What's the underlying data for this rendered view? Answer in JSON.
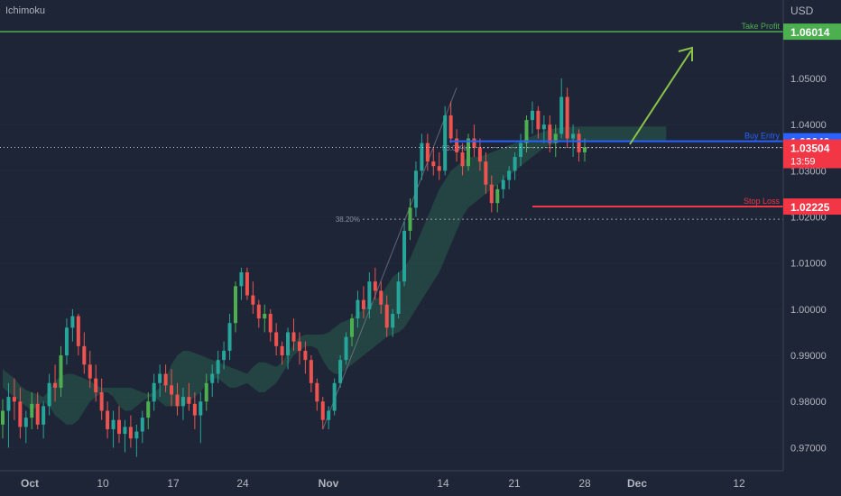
{
  "indicator": "Ichimoku",
  "currency": "USD",
  "chart_data": {
    "type": "candlestick",
    "ylim": [
      0.965,
      1.067
    ],
    "y_ticks": [
      "0.97000",
      "0.98000",
      "0.99000",
      "1.00000",
      "1.01000",
      "1.02000",
      "1.03000",
      "1.04000",
      "1.05000"
    ],
    "x_ticks": [
      "Oct",
      "10",
      "17",
      "24",
      "Nov",
      "14",
      "21",
      "28",
      "Dec",
      "12"
    ],
    "candles": [
      [
        0.975,
        0.9805,
        0.972,
        0.978
      ],
      [
        0.978,
        0.984,
        0.97,
        0.981
      ],
      [
        0.981,
        0.985,
        0.976,
        0.98
      ],
      [
        0.98,
        0.983,
        0.972,
        0.9745
      ],
      [
        0.9745,
        0.978,
        0.971,
        0.9765
      ],
      [
        0.9765,
        0.982,
        0.974,
        0.9795
      ],
      [
        0.9795,
        0.982,
        0.974,
        0.975
      ],
      [
        0.975,
        0.98,
        0.972,
        0.979
      ],
      [
        0.979,
        0.986,
        0.977,
        0.984
      ],
      [
        0.984,
        0.988,
        0.98,
        0.983
      ],
      [
        0.983,
        0.992,
        0.981,
        0.99
      ],
      [
        0.99,
        0.998,
        0.988,
        0.996
      ],
      [
        0.996,
        1.0,
        0.993,
        0.9985
      ],
      [
        0.9985,
        0.999,
        0.99,
        0.992
      ],
      [
        0.992,
        0.995,
        0.986,
        0.988
      ],
      [
        0.988,
        0.991,
        0.983,
        0.985
      ],
      [
        0.985,
        0.988,
        0.98,
        0.982
      ],
      [
        0.982,
        0.985,
        0.976,
        0.978
      ],
      [
        0.978,
        0.98,
        0.972,
        0.974
      ],
      [
        0.974,
        0.978,
        0.97,
        0.976
      ],
      [
        0.976,
        0.979,
        0.971,
        0.973
      ],
      [
        0.973,
        0.976,
        0.969,
        0.9745
      ],
      [
        0.9745,
        0.977,
        0.97,
        0.972
      ],
      [
        0.972,
        0.975,
        0.968,
        0.9735
      ],
      [
        0.9735,
        0.978,
        0.971,
        0.9765
      ],
      [
        0.9765,
        0.982,
        0.974,
        0.98
      ],
      [
        0.98,
        0.986,
        0.978,
        0.984
      ],
      [
        0.984,
        0.988,
        0.981,
        0.986
      ],
      [
        0.986,
        0.988,
        0.982,
        0.9835
      ],
      [
        0.9835,
        0.987,
        0.979,
        0.9815
      ],
      [
        0.9815,
        0.984,
        0.977,
        0.979
      ],
      [
        0.979,
        0.983,
        0.976,
        0.981
      ],
      [
        0.981,
        0.984,
        0.978,
        0.9795
      ],
      [
        0.9795,
        0.982,
        0.974,
        0.977
      ],
      [
        0.977,
        0.982,
        0.971,
        0.98
      ],
      [
        0.98,
        0.986,
        0.978,
        0.984
      ],
      [
        0.984,
        0.988,
        0.981,
        0.986
      ],
      [
        0.986,
        0.991,
        0.984,
        0.989
      ],
      [
        0.989,
        0.993,
        0.987,
        0.991
      ],
      [
        0.991,
        0.999,
        0.989,
        0.997
      ],
      [
        0.997,
        1.006,
        0.995,
        1.005
      ],
      [
        1.005,
        1.009,
        1.002,
        1.008
      ],
      [
        1.008,
        1.009,
        1.002,
        1.003
      ],
      [
        1.003,
        1.006,
        0.999,
        1.001
      ],
      [
        1.001,
        1.002,
        0.996,
        0.998
      ],
      [
        0.998,
        1.001,
        0.995,
        0.999
      ],
      [
        0.999,
        1.0,
        0.993,
        0.995
      ],
      [
        0.995,
        0.997,
        0.99,
        0.992
      ],
      [
        0.992,
        0.993,
        0.988,
        0.99
      ],
      [
        0.99,
        0.996,
        0.987,
        0.995
      ],
      [
        0.995,
        0.998,
        0.991,
        0.993
      ],
      [
        0.993,
        0.995,
        0.988,
        0.991
      ],
      [
        0.991,
        0.993,
        0.986,
        0.989
      ],
      [
        0.989,
        0.99,
        0.982,
        0.984
      ],
      [
        0.984,
        0.985,
        0.978,
        0.98
      ],
      [
        0.98,
        0.981,
        0.974,
        0.976
      ],
      [
        0.976,
        0.979,
        0.974,
        0.978
      ],
      [
        0.978,
        0.985,
        0.977,
        0.984
      ],
      [
        0.984,
        0.99,
        0.983,
        0.989
      ],
      [
        0.989,
        0.995,
        0.988,
        0.994
      ],
      [
        0.994,
        0.999,
        0.992,
        0.998
      ],
      [
        0.998,
        1.004,
        0.996,
        1.002
      ],
      [
        1.002,
        1.005,
        0.998,
        1.0
      ],
      [
        1.0,
        1.008,
        0.998,
        1.006
      ],
      [
        1.006,
        1.009,
        1.002,
        1.004
      ],
      [
        1.004,
        1.006,
        0.999,
        1.001
      ],
      [
        1.001,
        1.003,
        0.994,
        0.996
      ],
      [
        0.996,
        1.0,
        0.994,
        0.999
      ],
      [
        0.999,
        1.008,
        0.998,
        1.006
      ],
      [
        1.006,
        1.019,
        1.005,
        1.017
      ],
      [
        1.017,
        1.024,
        1.015,
        1.022
      ],
      [
        1.022,
        1.032,
        1.02,
        1.03
      ],
      [
        1.03,
        1.038,
        1.028,
        1.036
      ],
      [
        1.036,
        1.038,
        1.03,
        1.032
      ],
      [
        1.032,
        1.035,
        1.029,
        1.031
      ],
      [
        1.031,
        1.034,
        1.028,
        1.03
      ],
      [
        1.03,
        1.044,
        1.029,
        1.042
      ],
      [
        1.042,
        1.045,
        1.036,
        1.037
      ],
      [
        1.037,
        1.039,
        1.032,
        1.034
      ],
      [
        1.034,
        1.036,
        1.029,
        1.031
      ],
      [
        1.031,
        1.038,
        1.03,
        1.037
      ],
      [
        1.037,
        1.04,
        1.033,
        1.035
      ],
      [
        1.035,
        1.037,
        1.03,
        1.032
      ],
      [
        1.032,
        1.034,
        1.025,
        1.027
      ],
      [
        1.027,
        1.029,
        1.021,
        1.023
      ],
      [
        1.023,
        1.027,
        1.021,
        1.026
      ],
      [
        1.026,
        1.029,
        1.024,
        1.028
      ],
      [
        1.028,
        1.031,
        1.026,
        1.03
      ],
      [
        1.03,
        1.034,
        1.028,
        1.033
      ],
      [
        1.033,
        1.038,
        1.031,
        1.036
      ],
      [
        1.036,
        1.042,
        1.034,
        1.041
      ],
      [
        1.041,
        1.045,
        1.038,
        1.043
      ],
      [
        1.043,
        1.044,
        1.037,
        1.039
      ],
      [
        1.039,
        1.042,
        1.036,
        1.04
      ],
      [
        1.04,
        1.042,
        1.034,
        1.036
      ],
      [
        1.036,
        1.04,
        1.033,
        1.038
      ],
      [
        1.038,
        1.05,
        1.037,
        1.046
      ],
      [
        1.046,
        1.048,
        1.035,
        1.037
      ],
      [
        1.037,
        1.04,
        1.033,
        1.038
      ],
      [
        1.038,
        1.039,
        1.032,
        1.034
      ],
      [
        1.034,
        1.037,
        1.032,
        1.035
      ]
    ],
    "cloud": [
      [
        0.983,
        0.987
      ],
      [
        0.982,
        0.986
      ],
      [
        0.981,
        0.985
      ],
      [
        0.98,
        0.9835
      ],
      [
        0.979,
        0.9825
      ],
      [
        0.978,
        0.982
      ],
      [
        0.979,
        0.9815
      ],
      [
        0.98,
        0.981
      ],
      [
        0.979,
        0.9825
      ],
      [
        0.977,
        0.9845
      ],
      [
        0.976,
        0.9855
      ],
      [
        0.975,
        0.986
      ],
      [
        0.975,
        0.986
      ],
      [
        0.976,
        0.9855
      ],
      [
        0.978,
        0.985
      ],
      [
        0.98,
        0.9845
      ],
      [
        0.981,
        0.9835
      ],
      [
        0.982,
        0.983
      ],
      [
        0.982,
        0.983
      ],
      [
        0.981,
        0.983
      ],
      [
        0.979,
        0.983
      ],
      [
        0.978,
        0.983
      ],
      [
        0.978,
        0.983
      ],
      [
        0.979,
        0.9825
      ],
      [
        0.98,
        0.982
      ],
      [
        0.981,
        0.9815
      ],
      [
        0.981,
        0.982
      ],
      [
        0.98,
        0.983
      ],
      [
        0.979,
        0.985
      ],
      [
        0.979,
        0.988
      ],
      [
        0.979,
        0.99
      ],
      [
        0.979,
        0.991
      ],
      [
        0.98,
        0.991
      ],
      [
        0.981,
        0.9905
      ],
      [
        0.982,
        0.99
      ],
      [
        0.984,
        0.9895
      ],
      [
        0.985,
        0.989
      ],
      [
        0.985,
        0.9885
      ],
      [
        0.984,
        0.988
      ],
      [
        0.983,
        0.9875
      ],
      [
        0.983,
        0.987
      ],
      [
        0.9835,
        0.9865
      ],
      [
        0.984,
        0.986
      ],
      [
        0.983,
        0.9875
      ],
      [
        0.982,
        0.9885
      ],
      [
        0.982,
        0.9885
      ],
      [
        0.983,
        0.988
      ],
      [
        0.984,
        0.9875
      ],
      [
        0.986,
        0.9885
      ],
      [
        0.988,
        0.9905
      ],
      [
        0.99,
        0.9925
      ],
      [
        0.991,
        0.994
      ],
      [
        0.992,
        0.9945
      ],
      [
        0.992,
        0.9945
      ],
      [
        0.9915,
        0.9945
      ],
      [
        0.989,
        0.9945
      ],
      [
        0.987,
        0.995
      ],
      [
        0.986,
        0.996
      ],
      [
        0.986,
        0.997
      ],
      [
        0.987,
        0.9975
      ],
      [
        0.988,
        0.998
      ],
      [
        0.989,
        0.999
      ],
      [
        0.99,
        1.0
      ],
      [
        0.991,
        1.001
      ],
      [
        0.992,
        1.002
      ],
      [
        0.993,
        1.003
      ],
      [
        0.994,
        1.005
      ],
      [
        0.9945,
        1.007
      ],
      [
        0.995,
        1.008
      ],
      [
        0.996,
        1.009
      ],
      [
        0.998,
        1.011
      ],
      [
        1.0,
        1.014
      ],
      [
        1.002,
        1.017
      ],
      [
        1.004,
        1.02
      ],
      [
        1.006,
        1.023
      ],
      [
        1.008,
        1.026
      ],
      [
        1.011,
        1.028
      ],
      [
        1.014,
        1.03
      ],
      [
        1.017,
        1.031
      ],
      [
        1.02,
        1.032
      ],
      [
        1.022,
        1.033
      ],
      [
        1.023,
        1.033
      ],
      [
        1.024,
        1.033
      ],
      [
        1.025,
        1.0335
      ],
      [
        1.026,
        1.034
      ],
      [
        1.027,
        1.0345
      ],
      [
        1.028,
        1.035
      ],
      [
        1.029,
        1.0355
      ],
      [
        1.03,
        1.036
      ],
      [
        1.031,
        1.0365
      ],
      [
        1.032,
        1.037
      ],
      [
        1.033,
        1.0375
      ],
      [
        1.034,
        1.038
      ],
      [
        1.035,
        1.0385
      ],
      [
        1.0355,
        1.039
      ],
      [
        1.036,
        1.0392
      ],
      [
        1.0362,
        1.0394
      ],
      [
        1.0364,
        1.0395
      ],
      [
        1.0364,
        1.0395
      ],
      [
        1.0365,
        1.0396
      ],
      [
        1.0365,
        1.0396
      ],
      [
        1.0365,
        1.0396
      ],
      [
        1.0365,
        1.0396
      ],
      [
        1.0365,
        1.0396
      ],
      [
        1.0365,
        1.0396
      ],
      [
        1.0365,
        1.0396
      ],
      [
        1.0365,
        1.0396
      ],
      [
        1.0365,
        1.0396
      ],
      [
        1.0365,
        1.0396
      ],
      [
        1.0365,
        1.0396
      ],
      [
        1.0365,
        1.0396
      ],
      [
        1.0365,
        1.0396
      ],
      [
        1.0365,
        1.0396
      ],
      [
        1.0365,
        1.0396
      ],
      [
        1.0365,
        1.0396
      ]
    ],
    "levels": [
      {
        "name": "Take Profit",
        "value": "1.06014",
        "color": "#4caf50"
      },
      {
        "name": "Buy Entry",
        "value": "1.03640",
        "color": "#2962ff"
      },
      {
        "name": "Stop Loss",
        "value": "1.02225",
        "color": "#f23645"
      }
    ],
    "fib_levels": [
      {
        "label": "50.00%",
        "value": 1.035
      },
      {
        "label": "38.20%",
        "value": 1.0195
      }
    ],
    "last_price": {
      "value": "1.03504",
      "timer": "13:59",
      "color": "#f23645"
    }
  },
  "colors": {
    "background": "#1e2537",
    "up": "#26a69a",
    "up_alt": "#4caf50",
    "down": "#ef5350",
    "axis_text": "#b2b5be",
    "grid": "#2a3245"
  }
}
